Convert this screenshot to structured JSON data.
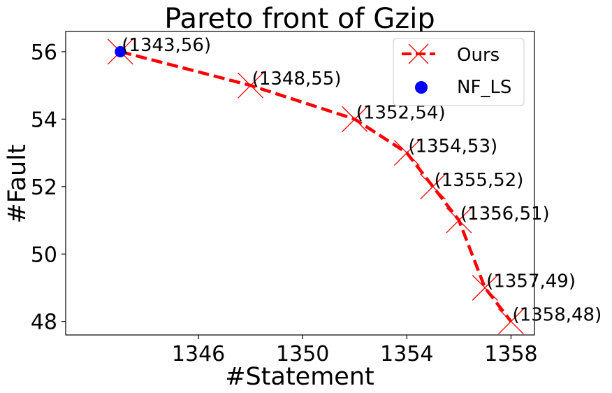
{
  "chart_data": {
    "type": "line",
    "title": "Pareto front of Gzip",
    "xlabel": "#Statement",
    "ylabel": "#Fault",
    "xlim": [
      1340.9,
      1358.9
    ],
    "ylim": [
      47.6,
      56.6
    ],
    "xticks": [
      1346,
      1350,
      1354,
      1358
    ],
    "yticks": [
      48,
      50,
      52,
      54,
      56
    ],
    "grid": false,
    "legend_position": "upper right",
    "series": [
      {
        "name": "Ours",
        "style": "dashed line with x markers",
        "color": "#ff0000",
        "x": [
          1343,
          1348,
          1352,
          1354,
          1355,
          1356,
          1357,
          1358
        ],
        "y": [
          56,
          55,
          54,
          53,
          52,
          51,
          49,
          48
        ]
      },
      {
        "name": "NF_LS",
        "style": "scatter",
        "color": "#0000ff",
        "x": [
          1343
        ],
        "y": [
          56
        ]
      }
    ],
    "annotations": [
      {
        "text": "(1343,56)",
        "x": 1343,
        "y": 56
      },
      {
        "text": "(1348,55)",
        "x": 1348,
        "y": 55
      },
      {
        "text": "(1352,54)",
        "x": 1352,
        "y": 54
      },
      {
        "text": "(1354,53)",
        "x": 1354,
        "y": 53
      },
      {
        "text": "(1355,52)",
        "x": 1355,
        "y": 52
      },
      {
        "text": "(1356,51)",
        "x": 1356,
        "y": 51
      },
      {
        "text": "(1357,49)",
        "x": 1357,
        "y": 49
      },
      {
        "text": "(1358,48)",
        "x": 1358,
        "y": 48
      }
    ]
  }
}
